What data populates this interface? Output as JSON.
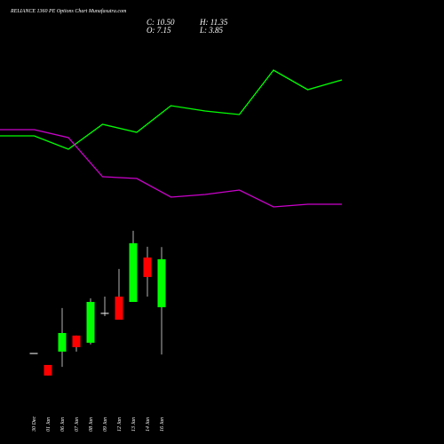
{
  "chart_data": [
    {
      "type": "line",
      "ylim": [
        0,
        100
      ],
      "series": [
        {
          "name": null,
          "color": "#00ff00",
          "values": [
            38.8,
            38.8,
            32.8,
            44,
            40.4,
            52.4,
            50,
            48.4,
            68.4,
            59.6,
            64
          ]
        },
        {
          "name": null,
          "color": "#cc00cc",
          "values": [
            41.6,
            41.6,
            38,
            20.4,
            19.6,
            11.2,
            12.4,
            14.4,
            6.8,
            8,
            8
          ]
        }
      ]
    },
    {
      "type": "candlestick",
      "title": "RELIANCE 1360 PE Options Chart Munafasutra.com",
      "ohlc_labels": [
        "C: 10.50",
        "H: 11.35",
        "O: 7.15",
        "L: 3.85"
      ],
      "categories": [
        "30 Dec",
        "01 Jan",
        "06 Jan",
        "07 Jan",
        "08 Jan",
        "09 Jan",
        "12 Jan",
        "13 Jan",
        "14 Jan",
        "16 Jan"
      ],
      "open": [
        3.92,
        3.12,
        4.05,
        5.17,
        4.67,
        6.72,
        7.89,
        7.52,
        10.62,
        7.15
      ],
      "high": [
        3.92,
        3.12,
        7.09,
        5.17,
        7.77,
        7.89,
        9.82,
        12.49,
        11.37,
        11.35
      ],
      "low": [
        3.92,
        2.38,
        2.99,
        4.05,
        4.55,
        6.53,
        6.28,
        7.52,
        7.89,
        3.85
      ],
      "close": [
        3.92,
        2.38,
        5.35,
        4.36,
        7.52,
        6.72,
        6.28,
        11.62,
        9.26,
        10.5
      ],
      "ylim": [
        -2.4,
        28.6
      ],
      "up_color": "#00ff00",
      "down_color": "#ff0000",
      "doji_color": "#ffffff"
    }
  ]
}
